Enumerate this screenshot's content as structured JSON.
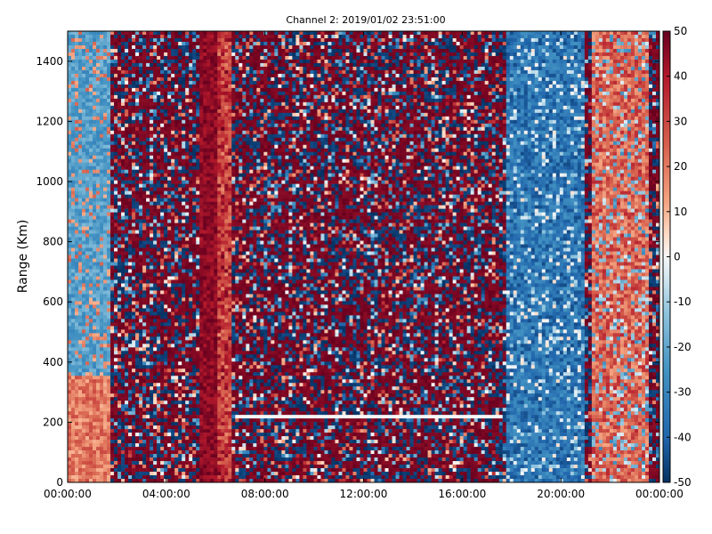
{
  "chart_data": {
    "type": "heatmap",
    "title": "Channel 2: 2019/01/02 23:51:00",
    "xlabel": "",
    "ylabel": "Range (Km)",
    "x_ticks": [
      "00:00:00",
      "04:00:00",
      "08:00:00",
      "12:00:00",
      "16:00:00",
      "20:00:00",
      "00:00:00"
    ],
    "x_range_hours": [
      0,
      24
    ],
    "y_ticks": [
      0,
      200,
      400,
      600,
      800,
      1000,
      1200,
      1400
    ],
    "ylim": [
      0,
      1500
    ],
    "colorbar": {
      "ticks": [
        50,
        40,
        30,
        20,
        10,
        0,
        -10,
        -20,
        -30,
        -40,
        -50
      ],
      "vmin": -50,
      "vmax": 50,
      "colormap": "RdBu_r"
    },
    "features": [
      {
        "kind": "strong-positive band",
        "x_hours": [
          5.4,
          6.6
        ],
        "ylim": [
          0,
          1500
        ]
      },
      {
        "kind": "negative region",
        "x_hours": [
          17.8,
          21.0
        ],
        "ylim": [
          0,
          1500
        ]
      },
      {
        "kind": "positive region",
        "x_hours": [
          21.3,
          23.5
        ],
        "ylim": [
          0,
          1500
        ]
      },
      {
        "kind": "negative region",
        "x_hours": [
          0,
          1.8
        ],
        "ylim": [
          350,
          1500
        ]
      },
      {
        "kind": "no-data line",
        "x_hours": [
          6.8,
          17.6
        ],
        "ylim": [
          210,
          225
        ]
      }
    ]
  }
}
